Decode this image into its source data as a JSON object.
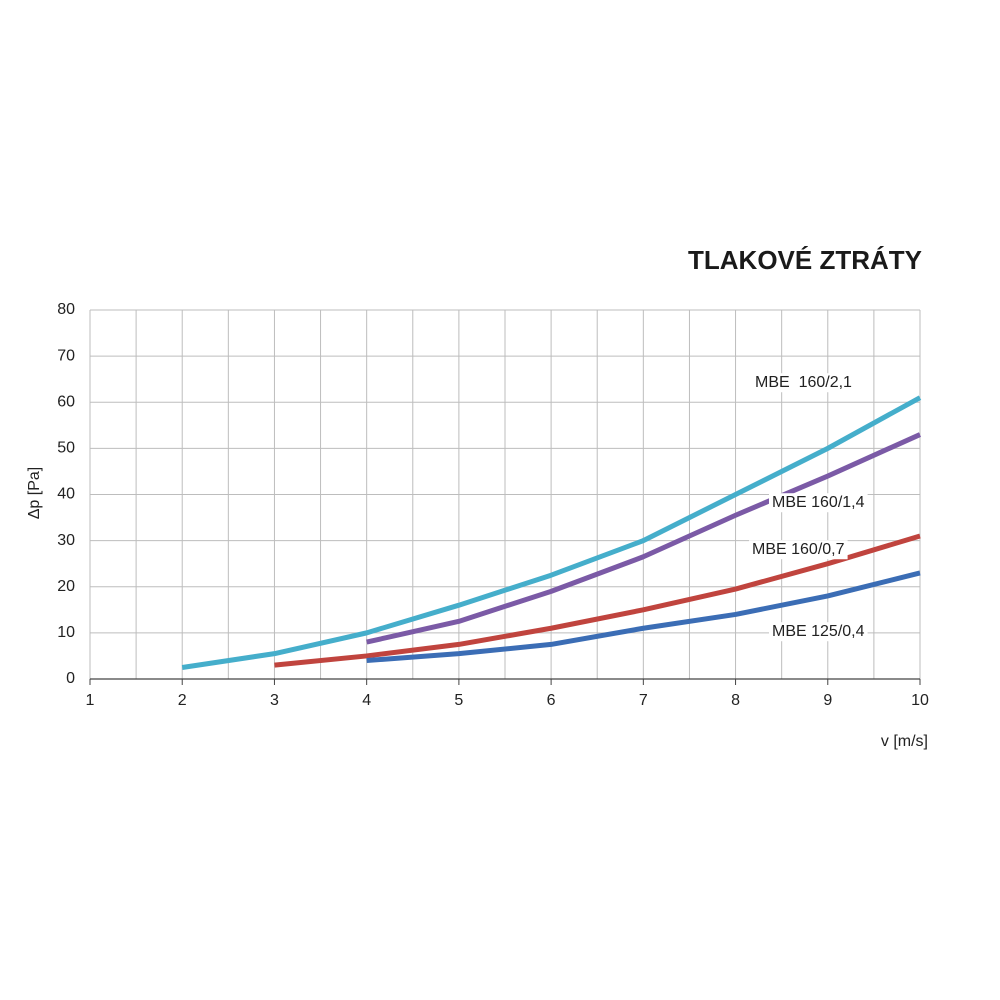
{
  "chart_data": {
    "type": "line",
    "title": "TLAKOVÉ ZTRÁTY",
    "x_label": "v [m/s]",
    "y_label": "Δp [Pa]",
    "xlim": [
      1,
      10
    ],
    "ylim": [
      0,
      80
    ],
    "xticks": [
      1,
      2,
      3,
      4,
      5,
      6,
      7,
      8,
      9,
      10
    ],
    "yticks": [
      0,
      10,
      20,
      30,
      40,
      50,
      60,
      70,
      80
    ],
    "xgrid": [
      1,
      1.5,
      2,
      2.5,
      3,
      3.5,
      4,
      4.5,
      5,
      5.5,
      6,
      6.5,
      7,
      7.5,
      8,
      8.5,
      9,
      9.5,
      10
    ],
    "grid": true,
    "series": [
      {
        "name": "MBE  160/2,1",
        "color": "#45aecb",
        "x": [
          2,
          3,
          4,
          5,
          6,
          7,
          8,
          9,
          10
        ],
        "values": [
          2.5,
          5.5,
          10,
          16,
          22.5,
          30,
          40,
          50,
          61
        ]
      },
      {
        "name": "MBE 160/1,4",
        "color": "#7b5aa6",
        "x": [
          4,
          5,
          6,
          7,
          8,
          9,
          10
        ],
        "values": [
          8,
          12.5,
          19,
          26.5,
          35.5,
          44,
          53
        ]
      },
      {
        "name": "MBE 160/0,7",
        "color": "#c0443e",
        "x": [
          3,
          4,
          5,
          6,
          7,
          8,
          9,
          10
        ],
        "values": [
          3,
          5,
          7.5,
          11,
          15,
          19.5,
          25,
          31
        ]
      },
      {
        "name": "MBE 125/0,4",
        "color": "#3b6db5",
        "x": [
          4,
          5,
          6,
          7,
          8,
          9,
          10
        ],
        "values": [
          4,
          5.5,
          7.5,
          11,
          14,
          18,
          23
        ]
      }
    ]
  }
}
